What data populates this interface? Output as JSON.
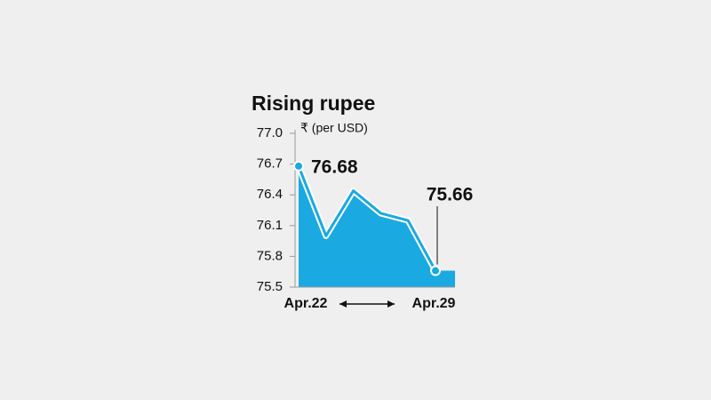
{
  "chart_data": {
    "type": "area",
    "title": "Rising rupee",
    "subtitle": "₹ (per USD)",
    "categories": [
      "Apr.22",
      null,
      null,
      null,
      null,
      "Apr.29"
    ],
    "values": [
      76.68,
      76.0,
      76.44,
      76.22,
      76.15,
      75.66
    ],
    "value_labels": [
      "76.68",
      null,
      null,
      null,
      null,
      "75.66"
    ],
    "color": "#1aa9e1",
    "ylim": [
      75.5,
      77.0
    ],
    "yticks": [
      75.5,
      75.8,
      76.1,
      76.4,
      76.7,
      {
        "value": 77.0,
        "label": "77.0"
      }
    ]
  }
}
